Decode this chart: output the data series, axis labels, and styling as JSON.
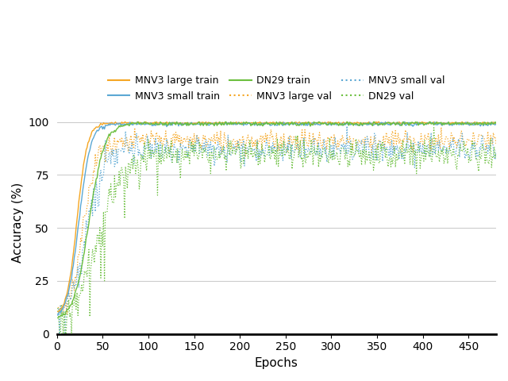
{
  "title": "",
  "xlabel": "Epochs",
  "ylabel": "Accuracy (%)",
  "xlim": [
    0,
    480
  ],
  "ylim": [
    0,
    105
  ],
  "yticks": [
    0,
    25,
    50,
    75,
    100
  ],
  "xticks": [
    0,
    50,
    100,
    150,
    200,
    250,
    300,
    350,
    400,
    450
  ],
  "n_epochs": 480,
  "colors": {
    "mnv3_large": "#F5A623",
    "mnv3_small": "#5BA8D4",
    "dn29": "#6BBF3E"
  },
  "figsize": [
    6.4,
    4.8
  ],
  "dpi": 100,
  "background_color": "#ffffff",
  "grid_color": "#cccccc"
}
